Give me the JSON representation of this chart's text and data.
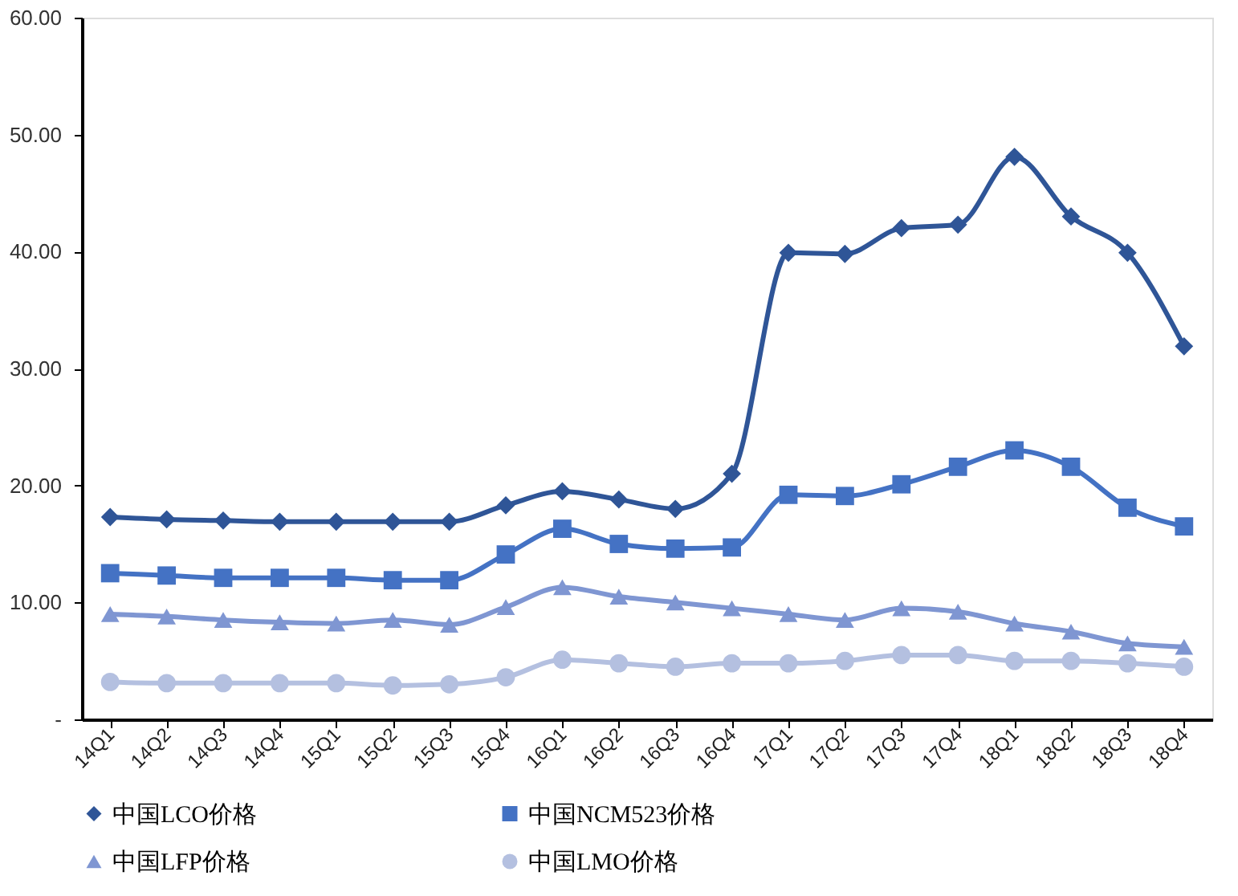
{
  "chart_data": {
    "type": "line",
    "categories": [
      "14Q1",
      "14Q2",
      "14Q3",
      "14Q4",
      "15Q1",
      "15Q2",
      "15Q3",
      "15Q4",
      "16Q1",
      "16Q2",
      "16Q3",
      "16Q4",
      "17Q1",
      "17Q2",
      "17Q3",
      "17Q4",
      "18Q1",
      "18Q2",
      "18Q3",
      "18Q4"
    ],
    "series": [
      {
        "name": "中国LCO价格",
        "color": "#2f5597",
        "marker": "diamond",
        "values": [
          17.3,
          17.1,
          17.0,
          16.9,
          16.9,
          16.9,
          16.9,
          18.3,
          19.5,
          18.8,
          18.0,
          21.0,
          39.9,
          39.8,
          42.0,
          42.3,
          48.1,
          43.0,
          39.9,
          31.9
        ]
      },
      {
        "name": "中国NCM523价格",
        "color": "#4472c4",
        "marker": "square",
        "values": [
          12.5,
          12.3,
          12.1,
          12.1,
          12.1,
          11.9,
          11.9,
          14.1,
          16.3,
          15.0,
          14.6,
          14.7,
          19.2,
          19.1,
          20.1,
          21.6,
          23.0,
          21.6,
          18.1,
          16.5
        ]
      },
      {
        "name": "中国LFP价格",
        "color": "#7f96d2",
        "marker": "triangle",
        "values": [
          9.0,
          8.8,
          8.5,
          8.3,
          8.2,
          8.5,
          8.1,
          9.6,
          11.3,
          10.5,
          10.0,
          9.5,
          9.0,
          8.5,
          9.5,
          9.2,
          8.2,
          7.5,
          6.5,
          6.2
        ]
      },
      {
        "name": "中国LMO价格",
        "color": "#b4c0e0",
        "marker": "circle",
        "values": [
          3.2,
          3.1,
          3.1,
          3.1,
          3.1,
          2.9,
          3.0,
          3.6,
          5.1,
          4.8,
          4.5,
          4.8,
          4.8,
          5.0,
          5.5,
          5.5,
          5.0,
          5.0,
          4.8,
          4.5
        ]
      }
    ],
    "ylim": [
      0,
      60
    ],
    "yticks": [
      {
        "value": 0,
        "label": "-"
      },
      {
        "value": 10,
        "label": "10.00"
      },
      {
        "value": 20,
        "label": "20.00"
      },
      {
        "value": 30,
        "label": "30.00"
      },
      {
        "value": 40,
        "label": "40.00"
      },
      {
        "value": 50,
        "label": "50.00"
      },
      {
        "value": 60,
        "label": "60.00"
      }
    ],
    "grid": false,
    "legend": "bottom",
    "line_style": "solid"
  }
}
